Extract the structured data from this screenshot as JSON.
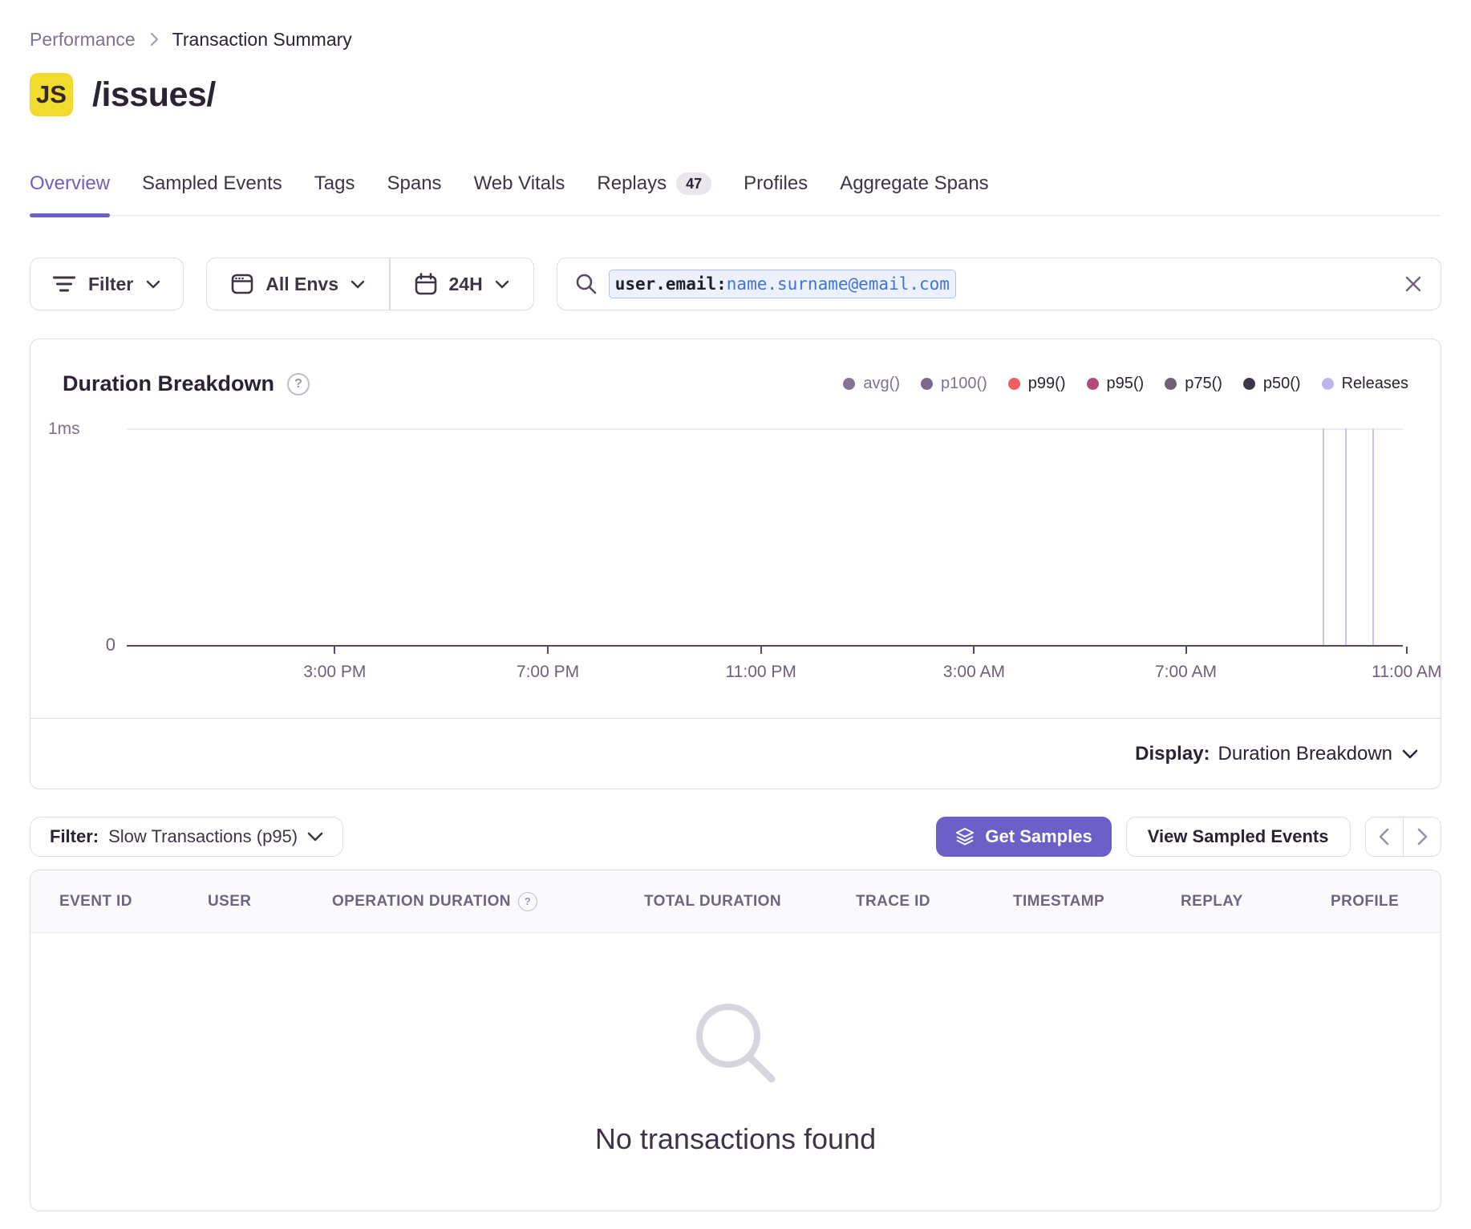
{
  "breadcrumb": {
    "parent": "Performance",
    "current": "Transaction Summary"
  },
  "page": {
    "project_badge": "JS",
    "title": "/issues/"
  },
  "tabs": [
    {
      "label": "Overview",
      "active": true
    },
    {
      "label": "Sampled Events",
      "active": false
    },
    {
      "label": "Tags",
      "active": false
    },
    {
      "label": "Spans",
      "active": false
    },
    {
      "label": "Web Vitals",
      "active": false
    },
    {
      "label": "Replays",
      "active": false,
      "badge": "47"
    },
    {
      "label": "Profiles",
      "active": false
    },
    {
      "label": "Aggregate Spans",
      "active": false
    }
  ],
  "filter_bar": {
    "filter_button": "Filter",
    "env_button": "All Envs",
    "time_button": "24H",
    "search": {
      "token_key": "user.email:",
      "token_value": "name.surname@email.com"
    }
  },
  "chart": {
    "title": "Duration Breakdown",
    "legend": [
      {
        "label": "avg()",
        "color": "#857397",
        "muted": true
      },
      {
        "label": "p100()",
        "color": "#7A688E",
        "muted": true
      },
      {
        "label": "p99()",
        "color": "#EC5E60",
        "muted": false
      },
      {
        "label": "p95()",
        "color": "#B44A77",
        "muted": false
      },
      {
        "label": "p75()",
        "color": "#6D6175",
        "muted": false
      },
      {
        "label": "p50()",
        "color": "#3F3549",
        "muted": false
      },
      {
        "label": "Releases",
        "color": "#BDB6ED",
        "muted": false
      }
    ],
    "y_top_label": "1ms",
    "y_bottom_label": "0",
    "x_ticks": [
      {
        "label": "3:00 PM",
        "pos": 16.3
      },
      {
        "label": "7:00 PM",
        "pos": 33.0
      },
      {
        "label": "11:00 PM",
        "pos": 49.7
      },
      {
        "label": "3:00 AM",
        "pos": 66.4
      },
      {
        "label": "7:00 AM",
        "pos": 83.0
      },
      {
        "label": "11:00 AM",
        "pos": 100.3
      }
    ],
    "release_line_positions": [
      93.7,
      95.5,
      97.6
    ],
    "display_label": "Display:",
    "display_value": "Duration Breakdown"
  },
  "chart_data": {
    "type": "line",
    "title": "Duration Breakdown",
    "series": [
      {
        "name": "avg()",
        "values": []
      },
      {
        "name": "p100()",
        "values": []
      },
      {
        "name": "p99()",
        "values": []
      },
      {
        "name": "p95()",
        "values": []
      },
      {
        "name": "p75()",
        "values": []
      },
      {
        "name": "p50()",
        "values": []
      }
    ],
    "x_tick_labels": [
      "3:00 PM",
      "7:00 PM",
      "11:00 PM",
      "3:00 AM",
      "7:00 AM",
      "11:00 AM"
    ],
    "ylim_labels": [
      "0",
      "1ms"
    ],
    "legend_position": "top-right",
    "annotations": "3 release marker vertical lines near right edge"
  },
  "samples_bar": {
    "filter_label": "Filter:",
    "filter_value": "Slow Transactions (p95)",
    "get_samples": "Get Samples",
    "view_sampled": "View Sampled Events"
  },
  "table": {
    "columns": [
      {
        "label": "EVENT ID",
        "help": false
      },
      {
        "label": "USER",
        "help": false
      },
      {
        "label": "OPERATION DURATION",
        "help": true
      },
      {
        "label": "TOTAL DURATION",
        "help": false
      },
      {
        "label": "TRACE ID",
        "help": false
      },
      {
        "label": "TIMESTAMP",
        "help": false
      },
      {
        "label": "REPLAY",
        "help": false
      },
      {
        "label": "PROFILE",
        "help": false
      }
    ],
    "empty_text": "No transactions found"
  },
  "colors": {
    "accent_purple": "#6C5FC7",
    "badge_yellow": "#F0DB2E",
    "border": "#E0DCE5",
    "text_dark": "#2B2233",
    "text_muted": "#80708F",
    "release_line": "#C9C3EF",
    "token_blue": "#3C74DD"
  }
}
